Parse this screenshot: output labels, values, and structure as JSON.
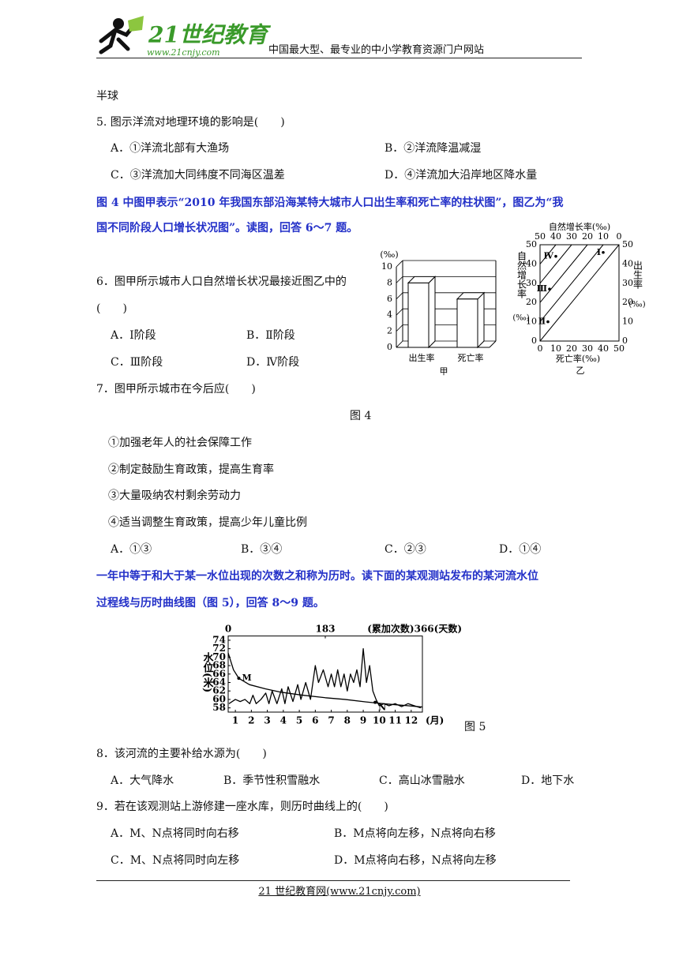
{
  "header": {
    "logo_text": "21世纪教育",
    "logo_url": "www.21cnjy.com",
    "slogan": "中国最大型、最专业的中小学教育资源门户网站"
  },
  "body": {
    "prev_line": "半球",
    "q5": {
      "stem": "5. 图示洋流对地理环境的影响是(　　)",
      "options": [
        "A．①洋流北部有大渔场",
        "B．②洋流降温减湿",
        "C．③洋流加大同纬度不同海区温差",
        "D．④洋流加大沿岸地区降水量"
      ]
    },
    "intro_6_7": [
      "图 4 中图甲表示“2010 年我国东部沿海某特大城市人口出生率和死亡率的柱状图”，图乙为“我",
      "国不同阶段人口增长状况图”。读图，回答 6～7 题。"
    ],
    "q6": {
      "stem": [
        "6．图甲所示城市人口自然增长状况最接近图乙中的",
        "(　　)"
      ],
      "options": [
        "A．Ⅰ阶段",
        "B．Ⅱ阶段",
        "C．Ⅲ阶段",
        "D．Ⅳ阶段"
      ]
    },
    "q7": {
      "stem": "7．图甲所示城市在今后应(　　)",
      "items": [
        "①加强老年人的社会保障工作",
        "②制定鼓励生育政策，提高生育率",
        "③大量吸纳农村剩余劳动力",
        "④适当调整生育政策，提高少年儿童比例"
      ],
      "options": [
        "A．①③",
        "B．③④",
        "C．②③",
        "D．①④"
      ]
    },
    "figure4_caption": "图 4",
    "intro_8_9": [
      "一年中等于和大于某一水位出现的次数之和称为历时。读下面的某观测站发布的某河流水位",
      "过程线与历时曲线图（图 5），回答 8～9 题。"
    ],
    "figure5_caption": "图 5",
    "q8": {
      "stem": "8．该河流的主要补给水源为(　　)",
      "options": [
        "A．大气降水",
        "B．季节性积雪融水",
        "C．高山冰雪融水",
        "D．地下水"
      ]
    },
    "q9": {
      "stem": "9．若在该观测站上游修建一座水库，则历时曲线上的(　　)",
      "options": [
        "A．M、N点将同时向右移",
        "B．M点将向左移，N点将向右移",
        "C．M、N点将同时向左移",
        "D．M点将向右移，N点将向左移"
      ]
    }
  },
  "figures": {
    "jia": {
      "y_unit": "(‰)",
      "categories": [
        "出生率",
        "死亡率"
      ],
      "values": [
        8,
        6
      ],
      "ylim": [
        0,
        10
      ],
      "yticks": [
        0,
        2,
        4,
        6,
        8,
        10
      ],
      "caption": "甲",
      "color": "#ffffff"
    },
    "yi": {
      "top_label": "自然增长率(‰)",
      "top_ticks": [
        50,
        40,
        30,
        20,
        10,
        0
      ],
      "left_label": "自然增长率",
      "left_unit": "(‰)",
      "left_ticks": [
        0,
        10,
        20,
        30,
        40,
        50
      ],
      "right_label": "出生率",
      "right_unit": "(‰)",
      "right_ticks": [
        0,
        10,
        20,
        30,
        40,
        50
      ],
      "bottom_label": "死亡率(‰)",
      "bottom_ticks": [
        0,
        10,
        20,
        30,
        40,
        50
      ],
      "xlim": [
        0,
        50
      ],
      "ylim": [
        0,
        50
      ],
      "points": [
        {
          "label": "Ⅰ",
          "death": 40,
          "birth": 46
        },
        {
          "label": "Ⅱ",
          "death": 5,
          "birth": 10
        },
        {
          "label": "Ⅲ",
          "death": 6,
          "birth": 27
        },
        {
          "label": "Ⅳ",
          "death": 10,
          "birth": 44
        }
      ],
      "caption": "乙"
    },
    "fig5": {
      "y_label": "水位(米)",
      "ylim": [
        57,
        75
      ],
      "yticks": [
        58,
        60,
        62,
        64,
        66,
        68,
        70,
        72,
        74
      ],
      "xlim": [
        0.55,
        12.7
      ],
      "xticks": [
        1,
        2,
        3,
        4,
        5,
        6,
        7,
        8,
        9,
        10,
        11,
        12
      ],
      "x_unit": "(月)",
      "x2lim": [
        0,
        366
      ],
      "x2ticks": [
        0,
        183,
        {
          "value": 366,
          "label": "(累加次数)366(天数)"
        }
      ],
      "color": "#000000",
      "series": [
        {
          "x": [
            0.6,
            1,
            1.3,
            1.6,
            1.9,
            2.1,
            2.3,
            2.6,
            2.9,
            3.1,
            3.3,
            3.6,
            3.9,
            4.1,
            4.3,
            4.6,
            4.9,
            5.1,
            5.4,
            5.7,
            6,
            6.2,
            6.5,
            6.8,
            7,
            7.2,
            7.4,
            7.6,
            7.8,
            8,
            8.2,
            8.4,
            8.6,
            8.8,
            9,
            9.2,
            9.4,
            9.6,
            9.8,
            10,
            10.3,
            10.6,
            11,
            11.4,
            11.8,
            12.2,
            12.6
          ],
          "values": [
            59,
            60,
            59.5,
            60,
            59,
            61,
            59,
            60,
            61.5,
            59,
            62,
            59,
            62.5,
            59,
            63,
            59.5,
            63.5,
            60,
            64,
            60,
            68,
            64,
            67,
            63,
            66,
            63,
            67,
            63,
            66,
            62,
            66,
            64,
            67,
            63,
            72,
            64,
            68,
            62,
            60,
            58.5,
            59,
            58.5,
            59,
            58.3,
            59,
            58.5,
            58
          ]
        },
        {
          "axis": "x2",
          "x": [
            0,
            10,
            20,
            40,
            70,
            100,
            140,
            183,
            220,
            260,
            300,
            340,
            366
          ],
          "values": [
            71,
            67,
            65,
            63.5,
            62.5,
            61.7,
            61,
            60.4,
            60,
            59.4,
            58.9,
            58.5,
            58.2
          ]
        }
      ],
      "annotations": [
        {
          "label": "M",
          "x": 20,
          "y": 65
        },
        {
          "label": "N",
          "x": 277,
          "y": 59.3
        }
      ]
    }
  },
  "footer": {
    "text": "21 世纪教育网(www.21cnjy.com)"
  }
}
